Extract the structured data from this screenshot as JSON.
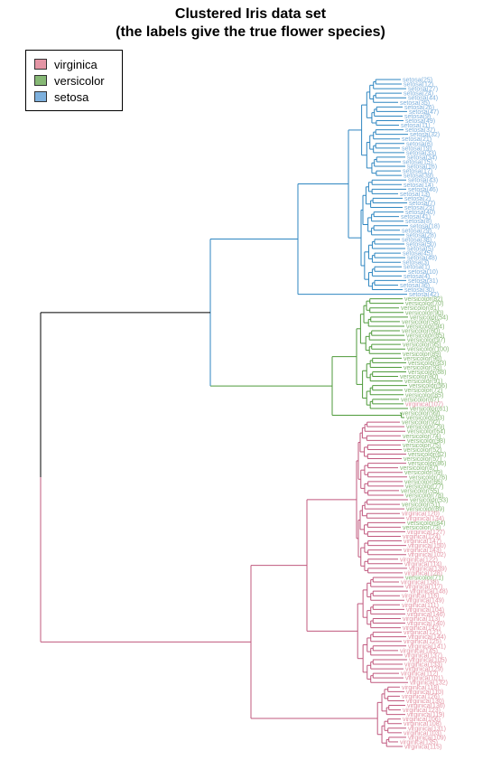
{
  "title": {
    "line1": "Clustered Iris data set",
    "line2": "(the labels give the true flower species)"
  },
  "legend": [
    {
      "label": "virginica",
      "color": "#E495A5"
    },
    {
      "label": "versicolor",
      "color": "#86B875"
    },
    {
      "label": "setosa",
      "color": "#7DB0DD"
    }
  ],
  "cluster_colors": {
    "setosa_branch": "#2E86C1",
    "versicolor_branch": "#4E9A3A",
    "virginica_branch": "#C0587E",
    "root": "#000000"
  },
  "leaves": [
    {
      "label": "setosa(25)",
      "species": "setosa"
    },
    {
      "label": "setosa(12)",
      "species": "setosa"
    },
    {
      "label": "setosa(27)",
      "species": "setosa"
    },
    {
      "label": "setosa(24)",
      "species": "setosa"
    },
    {
      "label": "setosa(44)",
      "species": "setosa"
    },
    {
      "label": "setosa(35)",
      "species": "setosa"
    },
    {
      "label": "setosa(26)",
      "species": "setosa"
    },
    {
      "label": "setosa(47)",
      "species": "setosa"
    },
    {
      "label": "setosa(9)",
      "species": "setosa"
    },
    {
      "label": "setosa(49)",
      "species": "setosa"
    },
    {
      "label": "setosa(11)",
      "species": "setosa"
    },
    {
      "label": "setosa(37)",
      "species": "setosa"
    },
    {
      "label": "setosa(32)",
      "species": "setosa"
    },
    {
      "label": "setosa(21)",
      "species": "setosa"
    },
    {
      "label": "setosa(6)",
      "species": "setosa"
    },
    {
      "label": "setosa(19)",
      "species": "setosa"
    },
    {
      "label": "setosa(33)",
      "species": "setosa"
    },
    {
      "label": "setosa(34)",
      "species": "setosa"
    },
    {
      "label": "setosa(15)",
      "species": "setosa"
    },
    {
      "label": "setosa(16)",
      "species": "setosa"
    },
    {
      "label": "setosa(17)",
      "species": "setosa"
    },
    {
      "label": "setosa(39)",
      "species": "setosa"
    },
    {
      "label": "setosa(43)",
      "species": "setosa"
    },
    {
      "label": "setosa(14)",
      "species": "setosa"
    },
    {
      "label": "setosa(46)",
      "species": "setosa"
    },
    {
      "label": "setosa(13)",
      "species": "setosa"
    },
    {
      "label": "setosa(2)",
      "species": "setosa"
    },
    {
      "label": "setosa(7)",
      "species": "setosa"
    },
    {
      "label": "setosa(23)",
      "species": "setosa"
    },
    {
      "label": "setosa(40)",
      "species": "setosa"
    },
    {
      "label": "setosa(41)",
      "species": "setosa"
    },
    {
      "label": "setosa(8)",
      "species": "setosa"
    },
    {
      "label": "setosa(18)",
      "species": "setosa"
    },
    {
      "label": "setosa(29)",
      "species": "setosa"
    },
    {
      "label": "setosa(28)",
      "species": "setosa"
    },
    {
      "label": "setosa(38)",
      "species": "setosa"
    },
    {
      "label": "setosa(50)",
      "species": "setosa"
    },
    {
      "label": "setosa(5)",
      "species": "setosa"
    },
    {
      "label": "setosa(45)",
      "species": "setosa"
    },
    {
      "label": "setosa(48)",
      "species": "setosa"
    },
    {
      "label": "setosa(3)",
      "species": "setosa"
    },
    {
      "label": "setosa(1)",
      "species": "setosa"
    },
    {
      "label": "setosa(10)",
      "species": "setosa"
    },
    {
      "label": "setosa(4)",
      "species": "setosa"
    },
    {
      "label": "setosa(31)",
      "species": "setosa"
    },
    {
      "label": "setosa(36)",
      "species": "setosa"
    },
    {
      "label": "setosa(30)",
      "species": "setosa"
    },
    {
      "label": "setosa(42)",
      "species": "setosa"
    },
    {
      "label": "versicolor(82)",
      "species": "versicolor"
    },
    {
      "label": "versicolor(70)",
      "species": "versicolor"
    },
    {
      "label": "versicolor(81)",
      "species": "versicolor"
    },
    {
      "label": "versicolor(90)",
      "species": "versicolor"
    },
    {
      "label": "versicolor(54)",
      "species": "versicolor"
    },
    {
      "label": "versicolor(58)",
      "species": "versicolor"
    },
    {
      "label": "versicolor(94)",
      "species": "versicolor"
    },
    {
      "label": "versicolor(60)",
      "species": "versicolor"
    },
    {
      "label": "versicolor(65)",
      "species": "versicolor"
    },
    {
      "label": "versicolor(97)",
      "species": "versicolor"
    },
    {
      "label": "versicolor(95)",
      "species": "versicolor"
    },
    {
      "label": "versicolor(100)",
      "species": "versicolor"
    },
    {
      "label": "versicolor(89)",
      "species": "versicolor"
    },
    {
      "label": "versicolor(96)",
      "species": "versicolor"
    },
    {
      "label": "versicolor(83)",
      "species": "versicolor"
    },
    {
      "label": "versicolor(93)",
      "species": "versicolor"
    },
    {
      "label": "versicolor(68)",
      "species": "versicolor"
    },
    {
      "label": "versicolor(80)",
      "species": "versicolor"
    },
    {
      "label": "versicolor(91)",
      "species": "versicolor"
    },
    {
      "label": "versicolor(56)",
      "species": "versicolor"
    },
    {
      "label": "versicolor(72)",
      "species": "versicolor"
    },
    {
      "label": "versicolor(85)",
      "species": "versicolor"
    },
    {
      "label": "versicolor(67)",
      "species": "versicolor"
    },
    {
      "label": "virginica(107)",
      "species": "virginica"
    },
    {
      "label": "versicolor(61)",
      "species": "versicolor"
    },
    {
      "label": "versicolor(99)",
      "species": "versicolor"
    },
    {
      "label": "versicolor(63)",
      "species": "versicolor"
    },
    {
      "label": "versicolor(92)",
      "species": "versicolor"
    },
    {
      "label": "versicolor(79)",
      "species": "versicolor"
    },
    {
      "label": "versicolor(64)",
      "species": "versicolor"
    },
    {
      "label": "versicolor(74)",
      "species": "versicolor"
    },
    {
      "label": "versicolor(98)",
      "species": "versicolor"
    },
    {
      "label": "versicolor(75)",
      "species": "versicolor"
    },
    {
      "label": "versicolor(52)",
      "species": "versicolor"
    },
    {
      "label": "versicolor(62)",
      "species": "versicolor"
    },
    {
      "label": "versicolor(57)",
      "species": "versicolor"
    },
    {
      "label": "versicolor(86)",
      "species": "versicolor"
    },
    {
      "label": "versicolor(87)",
      "species": "versicolor"
    },
    {
      "label": "versicolor(59)",
      "species": "versicolor"
    },
    {
      "label": "versicolor(76)",
      "species": "versicolor"
    },
    {
      "label": "versicolor(66)",
      "species": "versicolor"
    },
    {
      "label": "versicolor(77)",
      "species": "versicolor"
    },
    {
      "label": "versicolor(55)",
      "species": "versicolor"
    },
    {
      "label": "versicolor(78)",
      "species": "versicolor"
    },
    {
      "label": "versicolor(53)",
      "species": "versicolor"
    },
    {
      "label": "versicolor(51)",
      "species": "versicolor"
    },
    {
      "label": "versicolor(69)",
      "species": "versicolor"
    },
    {
      "label": "virginica(120)",
      "species": "virginica"
    },
    {
      "label": "virginica(134)",
      "species": "virginica"
    },
    {
      "label": "versicolor(84)",
      "species": "versicolor"
    },
    {
      "label": "versicolor(73)",
      "species": "versicolor"
    },
    {
      "label": "virginica(127)",
      "species": "virginica"
    },
    {
      "label": "virginica(124)",
      "species": "virginica"
    },
    {
      "label": "virginica(147)",
      "species": "virginica"
    },
    {
      "label": "virginica(150)",
      "species": "virginica"
    },
    {
      "label": "virginica(143)",
      "species": "virginica"
    },
    {
      "label": "virginica(102)",
      "species": "virginica"
    },
    {
      "label": "virginica(122)",
      "species": "virginica"
    },
    {
      "label": "virginica(114)",
      "species": "virginica"
    },
    {
      "label": "virginica(139)",
      "species": "virginica"
    },
    {
      "label": "virginica(128)",
      "species": "virginica"
    },
    {
      "label": "versicolor(71)",
      "species": "versicolor"
    },
    {
      "label": "virginica(138)",
      "species": "virginica"
    },
    {
      "label": "virginica(117)",
      "species": "virginica"
    },
    {
      "label": "virginica(148)",
      "species": "virginica"
    },
    {
      "label": "virginica(116)",
      "species": "virginica"
    },
    {
      "label": "virginica(149)",
      "species": "virginica"
    },
    {
      "label": "virginica(111)",
      "species": "virginica"
    },
    {
      "label": "virginica(104)",
      "species": "virginica"
    },
    {
      "label": "virginica(146)",
      "species": "virginica"
    },
    {
      "label": "virginica(113)",
      "species": "virginica"
    },
    {
      "label": "virginica(140)",
      "species": "virginica"
    },
    {
      "label": "virginica(142)",
      "species": "virginica"
    },
    {
      "label": "virginica(121)",
      "species": "virginica"
    },
    {
      "label": "virginica(144)",
      "species": "virginica"
    },
    {
      "label": "virginica(125)",
      "species": "virginica"
    },
    {
      "label": "virginica(141)",
      "species": "virginica"
    },
    {
      "label": "virginica(145)",
      "species": "virginica"
    },
    {
      "label": "virginica(137)",
      "species": "virginica"
    },
    {
      "label": "virginica(105)",
      "species": "virginica"
    },
    {
      "label": "virginica(133)",
      "species": "virginica"
    },
    {
      "label": "virginica(129)",
      "species": "virginica"
    },
    {
      "label": "virginica(112)",
      "species": "virginica"
    },
    {
      "label": "virginica(101)",
      "species": "virginica"
    },
    {
      "label": "virginica(132)",
      "species": "virginica"
    },
    {
      "label": "virginica(118)",
      "species": "virginica"
    },
    {
      "label": "virginica(110)",
      "species": "virginica"
    },
    {
      "label": "virginica(126)",
      "species": "virginica"
    },
    {
      "label": "virginica(130)",
      "species": "virginica"
    },
    {
      "label": "virginica(136)",
      "species": "virginica"
    },
    {
      "label": "virginica(123)",
      "species": "virginica"
    },
    {
      "label": "virginica(119)",
      "species": "virginica"
    },
    {
      "label": "virginica(106)",
      "species": "virginica"
    },
    {
      "label": "virginica(108)",
      "species": "virginica"
    },
    {
      "label": "virginica(131)",
      "species": "virginica"
    },
    {
      "label": "virginica(103)",
      "species": "virginica"
    },
    {
      "label": "virginica(109)",
      "species": "virginica"
    },
    {
      "label": "virginica(135)",
      "species": "virginica"
    },
    {
      "label": "virginica(115)",
      "species": "virginica"
    }
  ]
}
